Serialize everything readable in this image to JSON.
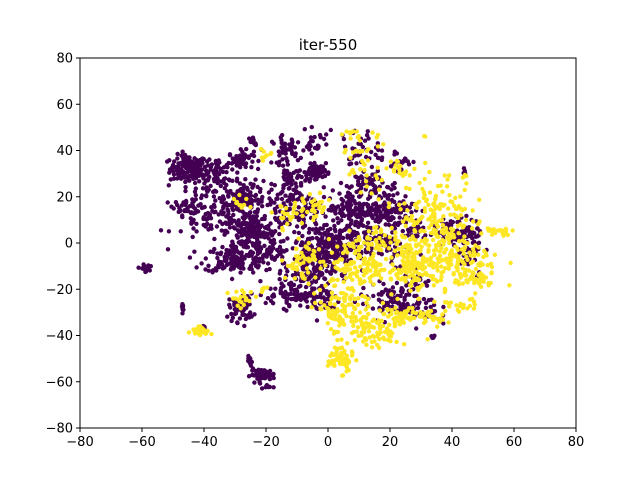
{
  "chart_data": {
    "type": "scatter",
    "title": "iter-550",
    "xlabel": "",
    "ylabel": "",
    "xlim": [
      -80,
      80
    ],
    "ylim": [
      -80,
      80
    ],
    "x_ticks": [
      -80,
      -60,
      -40,
      -20,
      0,
      20,
      40,
      60,
      80
    ],
    "y_ticks": [
      -80,
      -60,
      -40,
      -20,
      0,
      20,
      40,
      60,
      80
    ],
    "x_tick_labels": [
      "−80",
      "−60",
      "−40",
      "−20",
      "0",
      "20",
      "40",
      "60",
      "80"
    ],
    "y_tick_labels": [
      "−80",
      "−60",
      "−40",
      "−20",
      "0",
      "20",
      "40",
      "60",
      "80"
    ],
    "grid": false,
    "colors": {
      "class_0": "#440154",
      "class_1": "#fde725"
    },
    "series": [
      {
        "name": "class 0",
        "color": "#440154",
        "clusters": [
          {
            "cx": -45,
            "cy": 32,
            "sx": 3,
            "sy": 3,
            "n": 140
          },
          {
            "cx": -36,
            "cy": 32,
            "sx": 3,
            "sy": 4,
            "n": 50
          },
          {
            "cx": -28,
            "cy": 36,
            "sx": 2,
            "sy": 2,
            "n": 50
          },
          {
            "cx": -34,
            "cy": 24,
            "sx": 6,
            "sy": 4,
            "n": 60
          },
          {
            "cx": -28,
            "cy": 18,
            "sx": 3,
            "sy": 3,
            "n": 80
          },
          {
            "cx": -38,
            "cy": 10,
            "sx": 6,
            "sy": 5,
            "n": 80
          },
          {
            "cx": -46,
            "cy": 16,
            "sx": 2,
            "sy": 1.5,
            "n": 30
          },
          {
            "cx": -25,
            "cy": 5,
            "sx": 4,
            "sy": 4,
            "n": 140
          },
          {
            "cx": -30,
            "cy": -7,
            "sx": 5,
            "sy": 3,
            "n": 140
          },
          {
            "cx": -20,
            "cy": 18,
            "sx": 4,
            "sy": 5,
            "n": 60
          },
          {
            "cx": -20,
            "cy": -2,
            "sx": 5,
            "sy": 6,
            "n": 70
          },
          {
            "cx": -28,
            "cy": -28,
            "sx": 2,
            "sy": 3,
            "n": 60
          },
          {
            "cx": -59,
            "cy": -11,
            "sx": 0.7,
            "sy": 0.8,
            "n": 25
          },
          {
            "cx": -47,
            "cy": -28,
            "sx": 0.4,
            "sy": 1,
            "n": 8
          },
          {
            "cx": -40,
            "cy": -36,
            "sx": 0.6,
            "sy": 0.6,
            "n": 6
          },
          {
            "cx": -21,
            "cy": -57,
            "sx": 2,
            "sy": 1.2,
            "n": 60
          },
          {
            "cx": -25,
            "cy": -52,
            "sx": 0.5,
            "sy": 1.5,
            "n": 10
          },
          {
            "cx": -19,
            "cy": -62,
            "sx": 0.8,
            "sy": 0.5,
            "n": 8
          },
          {
            "cx": -14,
            "cy": 40,
            "sx": 2,
            "sy": 3,
            "n": 40
          },
          {
            "cx": -24,
            "cy": 44,
            "sx": 0.8,
            "sy": 1,
            "n": 10
          },
          {
            "cx": -4,
            "cy": 31,
            "sx": 1.5,
            "sy": 1.5,
            "n": 90
          },
          {
            "cx": -12,
            "cy": 28,
            "sx": 2,
            "sy": 3,
            "n": 40
          },
          {
            "cx": -4,
            "cy": 42,
            "sx": 3,
            "sy": 3,
            "n": 30
          },
          {
            "cx": -8,
            "cy": 15,
            "sx": 4,
            "sy": 5,
            "n": 70
          },
          {
            "cx": -2,
            "cy": 0,
            "sx": 5,
            "sy": 4,
            "n": 140
          },
          {
            "cx": -6,
            "cy": -12,
            "sx": 4,
            "sy": 4,
            "n": 110
          },
          {
            "cx": -12,
            "cy": -22,
            "sx": 4,
            "sy": 3,
            "n": 70
          },
          {
            "cx": -2,
            "cy": -24,
            "sx": 3,
            "sy": 4,
            "n": 50
          },
          {
            "cx": 4,
            "cy": -4,
            "sx": 2,
            "sy": 4,
            "n": 40
          },
          {
            "cx": 10,
            "cy": 14,
            "sx": 6,
            "sy": 4,
            "n": 160
          },
          {
            "cx": 20,
            "cy": 14,
            "sx": 4,
            "sy": 4,
            "n": 80
          },
          {
            "cx": 14,
            "cy": 25,
            "sx": 4,
            "sy": 3,
            "n": 60
          },
          {
            "cx": 10,
            "cy": 40,
            "sx": 3,
            "sy": 5,
            "n": 40
          },
          {
            "cx": 22,
            "cy": 36,
            "sx": 3,
            "sy": 2,
            "n": 20
          },
          {
            "cx": 12,
            "cy": 0,
            "sx": 5,
            "sy": 4,
            "n": 70
          },
          {
            "cx": 20,
            "cy": -2,
            "sx": 3,
            "sy": 3,
            "n": 30
          },
          {
            "cx": 20,
            "cy": -25,
            "sx": 5,
            "sy": 4,
            "n": 90
          },
          {
            "cx": 30,
            "cy": -28,
            "sx": 3,
            "sy": 4,
            "n": 40
          },
          {
            "cx": 28,
            "cy": -15,
            "sx": 2,
            "sy": 3,
            "n": 20
          },
          {
            "cx": 42,
            "cy": 5,
            "sx": 4,
            "sy": 3,
            "n": 90
          },
          {
            "cx": 46,
            "cy": -2,
            "sx": 2,
            "sy": 4,
            "n": 30
          },
          {
            "cx": 44,
            "cy": 31,
            "sx": 0.3,
            "sy": 0.8,
            "n": 6
          },
          {
            "cx": 34,
            "cy": -41,
            "sx": 0.3,
            "sy": 0.5,
            "n": 4
          },
          {
            "cx": 49,
            "cy": -14,
            "sx": 0.5,
            "sy": 1,
            "n": 5
          },
          {
            "cx": 28,
            "cy": 5,
            "sx": 2,
            "sy": 3,
            "n": 20
          }
        ]
      },
      {
        "name": "class 1",
        "color": "#fde725",
        "clusters": [
          {
            "cx": 34,
            "cy": 10,
            "sx": 6,
            "sy": 10,
            "n": 180
          },
          {
            "cx": 40,
            "cy": -10,
            "sx": 8,
            "sy": 6,
            "n": 180
          },
          {
            "cx": 48,
            "cy": -16,
            "sx": 2,
            "sy": 2,
            "n": 30
          },
          {
            "cx": 55,
            "cy": 5,
            "sx": 2,
            "sy": 1,
            "n": 25
          },
          {
            "cx": 26,
            "cy": -8,
            "sx": 4,
            "sy": 5,
            "n": 70
          },
          {
            "cx": 10,
            "cy": -10,
            "sx": 6,
            "sy": 6,
            "n": 150
          },
          {
            "cx": 4,
            "cy": -30,
            "sx": 4,
            "sy": 5,
            "n": 90
          },
          {
            "cx": 15,
            "cy": -38,
            "sx": 4,
            "sy": 4,
            "n": 80
          },
          {
            "cx": 22,
            "cy": -32,
            "sx": 4,
            "sy": 3,
            "n": 50
          },
          {
            "cx": 4,
            "cy": -50,
            "sx": 2,
            "sy": 3,
            "n": 60
          },
          {
            "cx": 32,
            "cy": -32,
            "sx": 3,
            "sy": 2,
            "n": 30
          },
          {
            "cx": 42,
            "cy": -28,
            "sx": 3,
            "sy": 2,
            "n": 20
          },
          {
            "cx": -8,
            "cy": -8,
            "sx": 3,
            "sy": 4,
            "n": 50
          },
          {
            "cx": -12,
            "cy": 12,
            "sx": 3,
            "sy": 3,
            "n": 25
          },
          {
            "cx": -4,
            "cy": 15,
            "sx": 2,
            "sy": 3,
            "n": 25
          },
          {
            "cx": 12,
            "cy": 35,
            "sx": 4,
            "sy": 6,
            "n": 40
          },
          {
            "cx": 8,
            "cy": 48,
            "sx": 2,
            "sy": 1,
            "n": 10
          },
          {
            "cx": 24,
            "cy": 32,
            "sx": 2,
            "sy": 2,
            "n": 15
          },
          {
            "cx": -41,
            "cy": -38,
            "sx": 1.5,
            "sy": 1,
            "n": 30
          },
          {
            "cx": -28,
            "cy": -24,
            "sx": 2,
            "sy": 2,
            "n": 20
          },
          {
            "cx": -20,
            "cy": -20,
            "sx": 1,
            "sy": 0.5,
            "n": 6
          },
          {
            "cx": -20,
            "cy": 38,
            "sx": 1,
            "sy": 2,
            "n": 8
          },
          {
            "cx": -28,
            "cy": 18,
            "sx": 2,
            "sy": 2,
            "n": 10
          },
          {
            "cx": 44,
            "cy": 28,
            "sx": 1,
            "sy": 1,
            "n": 4
          },
          {
            "cx": 31,
            "cy": 46,
            "sx": 0.3,
            "sy": 0.3,
            "n": 2
          },
          {
            "cx": 18,
            "cy": 0,
            "sx": 4,
            "sy": 4,
            "n": 40
          }
        ]
      }
    ]
  }
}
